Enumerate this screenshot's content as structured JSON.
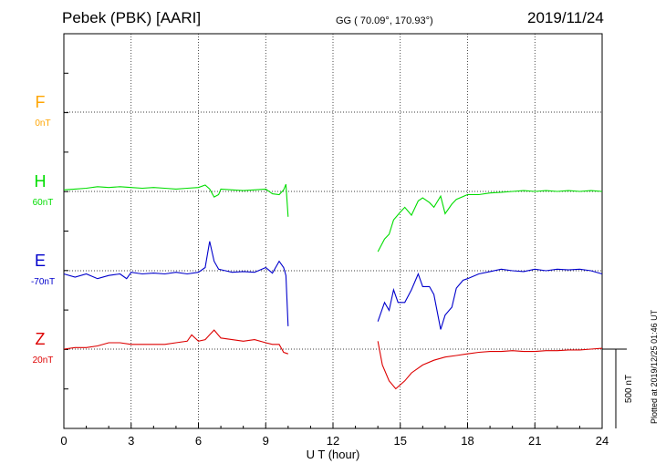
{
  "header": {
    "station": "Pebek (PBK)  [AARI]",
    "coords": "GG ( 70.09°, 170.93°)",
    "date": "2019/11/24"
  },
  "side_note": "Plotted at 2019/12/25 01:46 UT",
  "colors": {
    "F": "#ffa500",
    "H": "#00dd00",
    "E": "#0000cc",
    "Z": "#dd0000",
    "axis": "#000000"
  },
  "chart_data": {
    "type": "line",
    "xlabel": "U T (hour)",
    "xlim": [
      0,
      24
    ],
    "xticks": [
      "0",
      "3",
      "6",
      "9",
      "12",
      "15",
      "18",
      "21",
      "24"
    ],
    "grid": true,
    "scale_bar": {
      "label": "500 nT",
      "value_nT": 500
    },
    "components": [
      {
        "name": "F",
        "offset": "0nT",
        "color": "#ffa500"
      },
      {
        "name": "H",
        "offset": "60nT",
        "color": "#00dd00"
      },
      {
        "name": "E",
        "offset": "-70nT",
        "color": "#0000cc"
      },
      {
        "name": "Z",
        "offset": "20nT",
        "color": "#dd0000"
      }
    ],
    "series": [
      {
        "name": "H",
        "baseline_nT": 0,
        "color": "#00dd00",
        "points": [
          [
            0,
            10
          ],
          [
            0.5,
            15
          ],
          [
            1,
            20
          ],
          [
            1.5,
            30
          ],
          [
            2,
            25
          ],
          [
            2.5,
            30
          ],
          [
            3,
            25
          ],
          [
            3.5,
            20
          ],
          [
            4,
            25
          ],
          [
            4.5,
            20
          ],
          [
            5,
            15
          ],
          [
            5.5,
            20
          ],
          [
            6,
            25
          ],
          [
            6.3,
            40
          ],
          [
            6.5,
            15
          ],
          [
            6.7,
            -35
          ],
          [
            6.9,
            -20
          ],
          [
            7,
            15
          ],
          [
            7.5,
            10
          ],
          [
            8,
            5
          ],
          [
            8.5,
            10
          ],
          [
            9,
            15
          ],
          [
            9.3,
            -15
          ],
          [
            9.6,
            -20
          ],
          [
            9.8,
            10
          ],
          [
            9.9,
            45
          ],
          [
            10,
            -160
          ],
          [
            14,
            -380
          ],
          [
            14.3,
            -300
          ],
          [
            14.5,
            -270
          ],
          [
            14.7,
            -180
          ],
          [
            15,
            -130
          ],
          [
            15.2,
            -100
          ],
          [
            15.5,
            -150
          ],
          [
            15.8,
            -60
          ],
          [
            16,
            -40
          ],
          [
            16.3,
            -70
          ],
          [
            16.5,
            -100
          ],
          [
            16.8,
            -30
          ],
          [
            17,
            -140
          ],
          [
            17.3,
            -80
          ],
          [
            17.5,
            -50
          ],
          [
            18,
            -20
          ],
          [
            18.5,
            -20
          ],
          [
            19,
            -10
          ],
          [
            19.5,
            -5
          ],
          [
            20,
            0
          ],
          [
            20.5,
            5
          ],
          [
            21,
            0
          ],
          [
            21.5,
            5
          ],
          [
            22,
            0
          ],
          [
            22.5,
            5
          ],
          [
            23,
            0
          ],
          [
            23.5,
            5
          ],
          [
            24,
            0
          ]
        ]
      },
      {
        "name": "E",
        "baseline_nT": 0,
        "color": "#0000cc",
        "points": [
          [
            0,
            -20
          ],
          [
            0.5,
            -40
          ],
          [
            1,
            -20
          ],
          [
            1.5,
            -50
          ],
          [
            2,
            -30
          ],
          [
            2.5,
            -20
          ],
          [
            2.8,
            -50
          ],
          [
            3,
            -10
          ],
          [
            3.5,
            -20
          ],
          [
            4,
            -15
          ],
          [
            4.5,
            -20
          ],
          [
            5,
            -10
          ],
          [
            5.5,
            -20
          ],
          [
            6,
            -10
          ],
          [
            6.3,
            20
          ],
          [
            6.5,
            185
          ],
          [
            6.7,
            60
          ],
          [
            6.9,
            10
          ],
          [
            7.2,
            0
          ],
          [
            7.5,
            -10
          ],
          [
            8,
            -5
          ],
          [
            8.5,
            -10
          ],
          [
            9,
            20
          ],
          [
            9.3,
            -15
          ],
          [
            9.6,
            60
          ],
          [
            9.8,
            20
          ],
          [
            9.9,
            -30
          ],
          [
            10,
            -350
          ],
          [
            14,
            -320
          ],
          [
            14.3,
            -200
          ],
          [
            14.5,
            -250
          ],
          [
            14.7,
            -120
          ],
          [
            14.9,
            -200
          ],
          [
            15.2,
            -200
          ],
          [
            15.5,
            -120
          ],
          [
            15.8,
            -20
          ],
          [
            16,
            -100
          ],
          [
            16.3,
            -100
          ],
          [
            16.5,
            -150
          ],
          [
            16.8,
            -370
          ],
          [
            17,
            -280
          ],
          [
            17.3,
            -230
          ],
          [
            17.5,
            -110
          ],
          [
            17.8,
            -60
          ],
          [
            18,
            -50
          ],
          [
            18.5,
            -20
          ],
          [
            19,
            -5
          ],
          [
            19.5,
            10
          ],
          [
            20,
            0
          ],
          [
            20.5,
            -5
          ],
          [
            21,
            10
          ],
          [
            21.5,
            0
          ],
          [
            22,
            10
          ],
          [
            22.5,
            5
          ],
          [
            23,
            10
          ],
          [
            23.5,
            0
          ],
          [
            24,
            -20
          ]
        ]
      },
      {
        "name": "Z",
        "baseline_nT": 0,
        "color": "#dd0000",
        "points": [
          [
            0,
            0
          ],
          [
            0.5,
            10
          ],
          [
            1,
            10
          ],
          [
            1.5,
            20
          ],
          [
            2,
            40
          ],
          [
            2.5,
            40
          ],
          [
            3,
            30
          ],
          [
            3.5,
            30
          ],
          [
            4,
            30
          ],
          [
            4.5,
            30
          ],
          [
            5,
            40
          ],
          [
            5.5,
            50
          ],
          [
            5.7,
            90
          ],
          [
            6,
            50
          ],
          [
            6.3,
            60
          ],
          [
            6.5,
            90
          ],
          [
            6.7,
            120
          ],
          [
            7,
            70
          ],
          [
            7.5,
            60
          ],
          [
            8,
            50
          ],
          [
            8.5,
            60
          ],
          [
            9,
            40
          ],
          [
            9.3,
            30
          ],
          [
            9.6,
            30
          ],
          [
            9.8,
            -20
          ],
          [
            10,
            -30
          ],
          [
            14,
            50
          ],
          [
            14.2,
            -100
          ],
          [
            14.5,
            -200
          ],
          [
            14.8,
            -250
          ],
          [
            15.2,
            -200
          ],
          [
            15.5,
            -150
          ],
          [
            16,
            -100
          ],
          [
            16.5,
            -70
          ],
          [
            17,
            -50
          ],
          [
            17.5,
            -40
          ],
          [
            18,
            -30
          ],
          [
            18.5,
            -20
          ],
          [
            19,
            -15
          ],
          [
            19.5,
            -15
          ],
          [
            20,
            -10
          ],
          [
            20.5,
            -15
          ],
          [
            21,
            -15
          ],
          [
            21.5,
            -10
          ],
          [
            22,
            -10
          ],
          [
            22.5,
            -5
          ],
          [
            23,
            -5
          ],
          [
            23.5,
            0
          ],
          [
            24,
            5
          ]
        ]
      }
    ]
  }
}
